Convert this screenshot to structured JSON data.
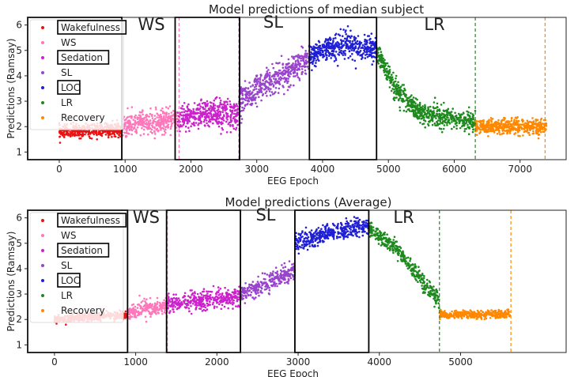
{
  "figure": {
    "background": "#ffffff",
    "phase_colors": {
      "Wakefulness": "#ee1111",
      "WS": "#ff77bb",
      "Sedation": "#cc22cc",
      "SL": "#9944cc",
      "LOC": "#1f1fd6",
      "LR": "#1e8a1e",
      "Recovery": "#ff8800"
    }
  },
  "chart_data": [
    {
      "type": "scatter",
      "title": "Model predictions of median subject",
      "xlabel": "EEG Epoch",
      "ylabel": "Predictions (Ramsay)",
      "xlim": [
        -480,
        7700
      ],
      "ylim": [
        0.7,
        6.3
      ],
      "xticks": [
        0,
        1000,
        2000,
        3000,
        4000,
        5000,
        6000,
        7000
      ],
      "yticks": [
        1,
        2,
        3,
        4,
        5,
        6
      ],
      "grid": false,
      "legend": {
        "placement": "top-left",
        "entries": [
          "Wakefulness",
          "WS",
          "Sedation",
          "SL",
          "LOC",
          "LR",
          "Recovery"
        ],
        "boxed_entries": [
          "Wakefulness",
          "Sedation",
          "LOC"
        ]
      },
      "series": [
        {
          "name": "Wakefulness",
          "x_range": [
            0,
            950
          ],
          "trend": [
            [
              0,
              1.8
            ],
            [
              950,
              1.9
            ]
          ],
          "spread": 0.25
        },
        {
          "name": "WS",
          "x_range": [
            950,
            1800
          ],
          "trend": [
            [
              950,
              2.0
            ],
            [
              1800,
              2.3
            ]
          ],
          "spread": 0.45
        },
        {
          "name": "Sedation",
          "x_range": [
            1800,
            2730
          ],
          "trend": [
            [
              1800,
              2.3
            ],
            [
              2250,
              2.5
            ],
            [
              2730,
              2.5
            ]
          ],
          "spread": 0.55
        },
        {
          "name": "SL",
          "x_range": [
            2730,
            3800
          ],
          "trend": [
            [
              2730,
              3.0
            ],
            [
              3200,
              3.8
            ],
            [
              3800,
              4.6
            ]
          ],
          "spread": 0.55
        },
        {
          "name": "LOC",
          "x_range": [
            3800,
            4820
          ],
          "trend": [
            [
              3800,
              4.8
            ],
            [
              4300,
              5.2
            ],
            [
              4820,
              5.0
            ]
          ],
          "spread": 0.5
        },
        {
          "name": "LR",
          "x_range": [
            4820,
            6320
          ],
          "trend": [
            [
              4820,
              5.0
            ],
            [
              5100,
              3.5
            ],
            [
              5500,
              2.5
            ],
            [
              6320,
              2.2
            ]
          ],
          "spread": 0.4
        },
        {
          "name": "Recovery",
          "x_range": [
            6320,
            7400
          ],
          "trend": [
            [
              6320,
              2.0
            ],
            [
              7400,
              2.0
            ]
          ],
          "spread": 0.3
        }
      ],
      "phase_labels": [
        {
          "text": "WS",
          "x": 1400,
          "y": 5.8
        },
        {
          "text": "SL",
          "x": 3250,
          "y": 5.9
        },
        {
          "text": "LR",
          "x": 5700,
          "y": 5.8
        }
      ],
      "boxed_regions": [
        {
          "x_range": [
            -480,
            950
          ],
          "y_range": [
            0.7,
            6.3
          ]
        },
        {
          "x_range": [
            1760,
            2740
          ],
          "y_range": [
            0.7,
            6.3
          ]
        },
        {
          "x_range": [
            3800,
            4820
          ],
          "y_range": [
            0.7,
            6.3
          ]
        }
      ],
      "dashed_lines": [
        {
          "x": 950,
          "color": "#ee1111"
        },
        {
          "x": 1820,
          "color": "#ff77bb"
        },
        {
          "x": 2730,
          "color": "#cc22cc"
        },
        {
          "x": 3800,
          "color": "#9944cc"
        },
        {
          "x": 4820,
          "color": "#1f1fd6"
        },
        {
          "x": 6320,
          "color": "#1e8a1e"
        },
        {
          "x": 7380,
          "color": "#ff8800"
        }
      ]
    },
    {
      "type": "scatter",
      "title": "Model predictions (Average)",
      "xlabel": "EEG Epoch",
      "ylabel": "Predictions (Ramsay)",
      "xlim": [
        -330,
        6300
      ],
      "ylim": [
        0.7,
        6.3
      ],
      "xticks": [
        0,
        1000,
        2000,
        3000,
        4000,
        5000
      ],
      "yticks": [
        1,
        2,
        3,
        4,
        5,
        6
      ],
      "grid": false,
      "legend": {
        "placement": "top-left",
        "entries": [
          "Wakefulness",
          "WS",
          "Sedation",
          "SL",
          "LOC",
          "LR",
          "Recovery"
        ],
        "boxed_entries": [
          "Wakefulness",
          "Sedation",
          "LOC"
        ]
      },
      "series": [
        {
          "name": "Wakefulness",
          "x_range": [
            0,
            900
          ],
          "trend": [
            [
              0,
              2.0
            ],
            [
              900,
              2.2
            ]
          ],
          "spread": 0.15
        },
        {
          "name": "WS",
          "x_range": [
            900,
            1380
          ],
          "trend": [
            [
              900,
              2.3
            ],
            [
              1380,
              2.5
            ]
          ],
          "spread": 0.35
        },
        {
          "name": "Sedation",
          "x_range": [
            1380,
            2290
          ],
          "trend": [
            [
              1380,
              2.6
            ],
            [
              2290,
              2.9
            ]
          ],
          "spread": 0.35
        },
        {
          "name": "SL",
          "x_range": [
            2290,
            2960
          ],
          "trend": [
            [
              2290,
              3.0
            ],
            [
              2960,
              3.9
            ]
          ],
          "spread": 0.35
        },
        {
          "name": "LOC",
          "x_range": [
            2960,
            3870
          ],
          "trend": [
            [
              2960,
              5.0
            ],
            [
              3500,
              5.5
            ],
            [
              3870,
              5.7
            ]
          ],
          "spread": 0.35
        },
        {
          "name": "LR",
          "x_range": [
            3870,
            4740
          ],
          "trend": [
            [
              3870,
              5.6
            ],
            [
              4200,
              4.8
            ],
            [
              4740,
              2.7
            ]
          ],
          "spread": 0.3
        },
        {
          "name": "Recovery",
          "x_range": [
            4740,
            5620
          ],
          "trend": [
            [
              4740,
              2.2
            ],
            [
              5620,
              2.2
            ]
          ],
          "spread": 0.15
        }
      ],
      "phase_labels": [
        {
          "text": "WS",
          "x": 1130,
          "y": 5.8
        },
        {
          "text": "SL",
          "x": 2600,
          "y": 5.9
        },
        {
          "text": "LR",
          "x": 4300,
          "y": 5.8
        }
      ],
      "boxed_regions": [
        {
          "x_range": [
            -330,
            900
          ],
          "y_range": [
            0.7,
            6.3
          ]
        },
        {
          "x_range": [
            1380,
            2290
          ],
          "y_range": [
            0.7,
            6.3
          ]
        },
        {
          "x_range": [
            2960,
            3870
          ],
          "y_range": [
            0.7,
            6.3
          ]
        }
      ],
      "dashed_lines": [
        {
          "x": 900,
          "color": "#ee1111"
        },
        {
          "x": 1390,
          "color": "#ff77bb"
        },
        {
          "x": 2290,
          "color": "#cc22cc"
        },
        {
          "x": 2960,
          "color": "#9944cc"
        },
        {
          "x": 3870,
          "color": "#1f1fd6"
        },
        {
          "x": 4740,
          "color": "#1e8a1e"
        },
        {
          "x": 5620,
          "color": "#ff8800"
        }
      ]
    }
  ]
}
